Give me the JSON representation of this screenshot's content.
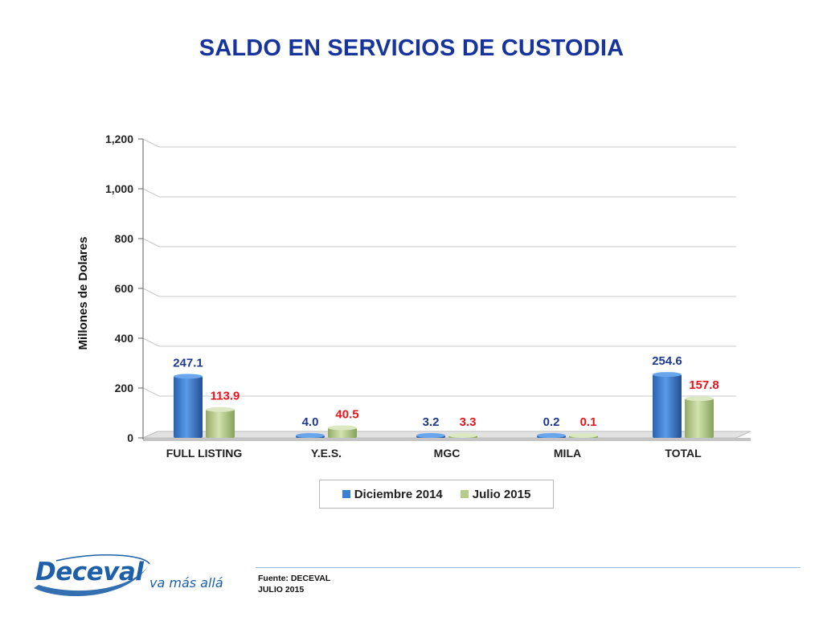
{
  "page": {
    "title": "SALDO EN SERVICIOS DE CUSTODIA"
  },
  "chart_data": {
    "type": "bar",
    "title": "SALDO EN SERVICIOS DE CUSTODIA",
    "ylabel": "Millones de Dolares",
    "xlabel": "",
    "ylim": [
      0,
      1200
    ],
    "yticks": [
      "0",
      "200",
      "400",
      "600",
      "800",
      "1,000",
      "1,200"
    ],
    "ytick_values": [
      0,
      200,
      400,
      600,
      800,
      1000,
      1200
    ],
    "grid": true,
    "legend_position": "bottom",
    "categories": [
      "FULL LISTING",
      "Y.E.S.",
      "MGC",
      "MILA",
      "TOTAL"
    ],
    "series": [
      {
        "name": "Diciembre 2014",
        "values": [
          247.1,
          4.0,
          3.2,
          0.2,
          254.6
        ],
        "labels": [
          "247.1",
          "4.0",
          "3.2",
          "0.2",
          "254.6"
        ],
        "color": "#3a7fd0",
        "label_color": "#1f3a8c"
      },
      {
        "name": "Julio 2015",
        "values": [
          113.9,
          40.5,
          3.3,
          0.1,
          157.8
        ],
        "labels": [
          "113.9",
          "40.5",
          "3.3",
          "0.1",
          "157.8"
        ],
        "color": "#b5cc8a",
        "label_color": "#e8141c"
      }
    ]
  },
  "footer": {
    "logo_text": "Deceval",
    "tagline": "va más allá",
    "source_line1": "Fuente: DECEVAL",
    "source_line2": "JULIO 2015"
  }
}
